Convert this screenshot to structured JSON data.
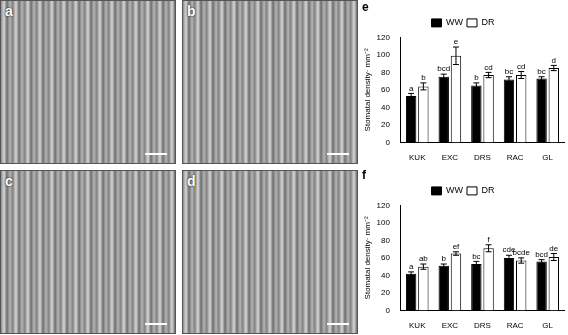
{
  "panels": [
    {
      "label": "a"
    },
    {
      "label": "b"
    },
    {
      "label": "c"
    },
    {
      "label": "d"
    }
  ],
  "chart_data": [
    {
      "type": "bar",
      "title": "e",
      "y_label": "Stomatal density· mm⁻²",
      "categories": [
        "KUK",
        "EXC",
        "DRS",
        "RAC",
        "GL"
      ],
      "series": [
        {
          "name": "WW",
          "color": "#000000",
          "values": [
            53,
            75,
            65,
            72,
            73
          ],
          "errors": [
            3,
            3,
            3,
            3,
            2
          ],
          "letters": [
            "a",
            "bcd",
            "b",
            "bc",
            "bc"
          ]
        },
        {
          "name": "DR",
          "color": "#ffffff",
          "values": [
            64,
            99,
            77,
            77,
            85
          ],
          "errors": [
            4,
            10,
            3,
            4,
            3
          ],
          "letters": [
            "b",
            "e",
            "cd",
            "cd",
            "d"
          ]
        }
      ],
      "ylim": [
        0,
        120
      ],
      "yticks": [
        0,
        20,
        40,
        60,
        80,
        100,
        120
      ],
      "grid": false,
      "legend": "top"
    },
    {
      "type": "bar",
      "title": "f",
      "y_label": "Stomatal density· mm⁻²",
      "categories": [
        "KUK",
        "EXC",
        "DRS",
        "RAC",
        "GL"
      ],
      "series": [
        {
          "name": "WW",
          "color": "#000000",
          "values": [
            42,
            51,
            53,
            60,
            56
          ],
          "errors": [
            2,
            2,
            3,
            3,
            2
          ],
          "letters": [
            "a",
            "b",
            "bc",
            "cde",
            "bcd"
          ]
        },
        {
          "name": "DR",
          "color": "#ffffff",
          "values": [
            50,
            65,
            71,
            57,
            61
          ],
          "errors": [
            3,
            2,
            4,
            3,
            4
          ],
          "letters": [
            "ab",
            "ef",
            "f",
            "bcde",
            "de"
          ]
        }
      ],
      "ylim": [
        0,
        120
      ],
      "yticks": [
        0,
        20,
        40,
        60,
        80,
        100,
        120
      ],
      "grid": false,
      "legend": "top"
    }
  ]
}
